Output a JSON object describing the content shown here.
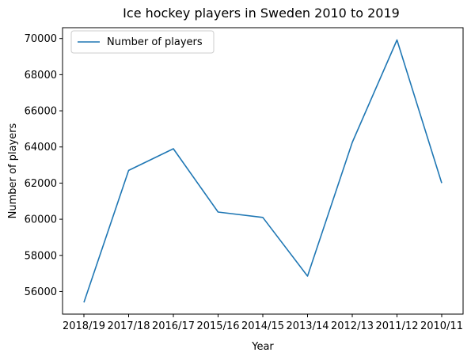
{
  "chart_data": {
    "type": "line",
    "title": "Ice hockey players in Sweden 2010 to 2019",
    "xlabel": "Year",
    "ylabel": "Number of players",
    "categories": [
      "2018/19",
      "2017/18",
      "2016/17",
      "2015/16",
      "2014/15",
      "2013/14",
      "2012/13",
      "2011/12",
      "2010/11"
    ],
    "series": [
      {
        "name": "Number of players",
        "values": [
          55400,
          62700,
          63900,
          60400,
          60100,
          56850,
          64250,
          69920,
          62000
        ],
        "color": "#1f77b4"
      }
    ],
    "ylim": [
      54750,
      70600
    ],
    "yticks": [
      56000,
      58000,
      60000,
      62000,
      64000,
      66000,
      68000,
      70000
    ],
    "ytick_labels": [
      "56000",
      "58000",
      "60000",
      "62000",
      "64000",
      "66000",
      "68000",
      "70000"
    ],
    "legend_position": "upper-left",
    "grid": false
  }
}
